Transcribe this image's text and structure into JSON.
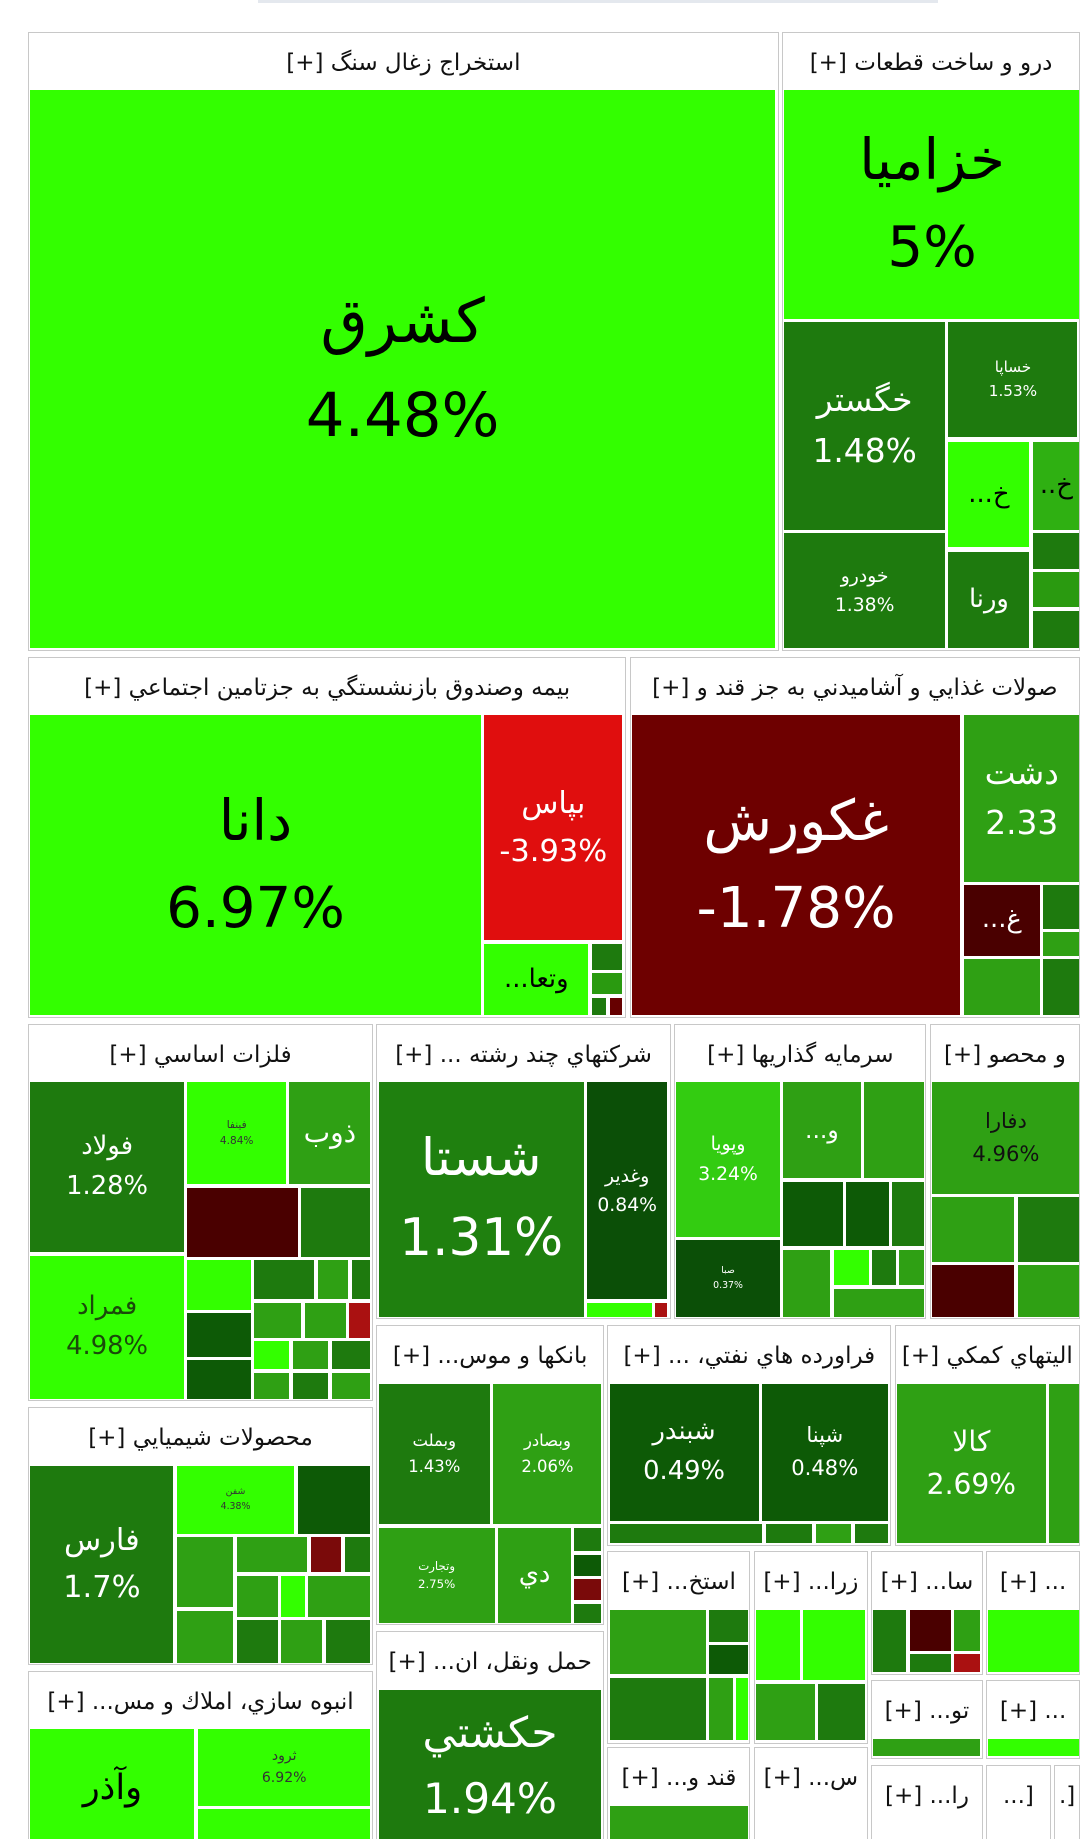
{
  "sectors": [
    {
      "title": "استخراج زغال سنگ [+]",
      "tiles": [
        {
          "symbol": "كشرق",
          "change": "4.48%"
        }
      ]
    },
    {
      "title": "درو و ساخت قطعات [+]",
      "tiles": [
        {
          "symbol": "خزاميا",
          "change": "5%"
        },
        {
          "symbol": "خگستر",
          "change": "1.48%"
        },
        {
          "symbol": "خساپا",
          "change": "1.53%"
        },
        {
          "symbol": "خ..."
        },
        {
          "symbol": "خ.."
        },
        {
          "symbol": "خودرو",
          "change": "1.38%"
        },
        {
          "symbol": "ورنا"
        }
      ]
    },
    {
      "title": "بيمه وصندوق بازنشستگي به جزتامين اجتماعي [+]",
      "tiles": [
        {
          "symbol": "دانا",
          "change": "6.97%"
        },
        {
          "symbol": "بپاس",
          "change": "-3.93%"
        },
        {
          "symbol": "وتعا..."
        }
      ]
    },
    {
      "title": "صولات غذايي و آشاميدني به جز قند و [+]",
      "tiles": [
        {
          "symbol": "غكورش",
          "change": "-1.78%"
        },
        {
          "symbol": "دشت",
          "change": "2.33"
        },
        {
          "symbol": "غ..."
        }
      ]
    },
    {
      "title": "فلزات اساسي [+]",
      "tiles": [
        {
          "symbol": "فولاد",
          "change": "1.28%"
        },
        {
          "symbol": "فينفا",
          "change": "4.84%"
        },
        {
          "symbol": "ذوب"
        },
        {
          "symbol": "فمراد",
          "change": "4.98%"
        }
      ]
    },
    {
      "title": "شرکتهاي چند رشته ... [+]",
      "tiles": [
        {
          "symbol": "شستا",
          "change": "1.31%"
        },
        {
          "symbol": "وغدير",
          "change": "0.84%"
        }
      ]
    },
    {
      "title": "سرمايه گذاريها [+]",
      "tiles": [
        {
          "symbol": "وپويا",
          "change": "3.24%"
        },
        {
          "symbol": "و..."
        },
        {
          "symbol": "صبا",
          "change": "0.37%"
        }
      ]
    },
    {
      "title": "و محصو [+]",
      "tiles": [
        {
          "symbol": "دفارا",
          "change": "4.96%"
        }
      ]
    },
    {
      "title": "محصولات شيميايي [+]",
      "tiles": [
        {
          "symbol": "فارس",
          "change": "1.7%"
        },
        {
          "symbol": "شفن",
          "change": "4.38%"
        }
      ]
    },
    {
      "title": "انبوه سازي، املاك و مس... [+]",
      "tiles": [
        {
          "symbol": "وآذر"
        },
        {
          "symbol": "ثرود",
          "change": "6.92%"
        }
      ]
    },
    {
      "title": "بانكها و موس... [+]",
      "tiles": [
        {
          "symbol": "وبملت",
          "change": "1.43%"
        },
        {
          "symbol": "وبصادر",
          "change": "2.06%"
        },
        {
          "symbol": "وتجارت",
          "change": "2.75%"
        },
        {
          "symbol": "دي"
        }
      ]
    },
    {
      "title": "فراورده هاي نفتي، ... [+]",
      "tiles": [
        {
          "symbol": "شبندر",
          "change": "0.49%"
        },
        {
          "symbol": "شپنا",
          "change": "0.48%"
        }
      ]
    },
    {
      "title": "اليتهاي كمكي [+]",
      "tiles": [
        {
          "symbol": "كالا",
          "change": "2.69%"
        }
      ]
    },
    {
      "title": "حمل ونقل، ان... [+]",
      "tiles": [
        {
          "symbol": "حكشتي",
          "change": "1.94%"
        }
      ]
    },
    {
      "title": "استخ... [+]",
      "tiles": []
    },
    {
      "title": "زرا... [+]",
      "tiles": []
    },
    {
      "title": "سا... [+]",
      "tiles": []
    },
    {
      "title": "... [+]",
      "tiles": []
    },
    {
      "title": "تو... [+]",
      "tiles": []
    },
    {
      "title": "... [+]",
      "tiles": []
    },
    {
      "title": "قند و... [+]",
      "tiles": []
    },
    {
      "title": "س... [+]",
      "tiles": []
    },
    {
      "title": "را... [+]",
      "tiles": []
    },
    {
      "title": "[...",
      "tiles": []
    },
    {
      "title": "[.",
      "tiles": []
    }
  ]
}
